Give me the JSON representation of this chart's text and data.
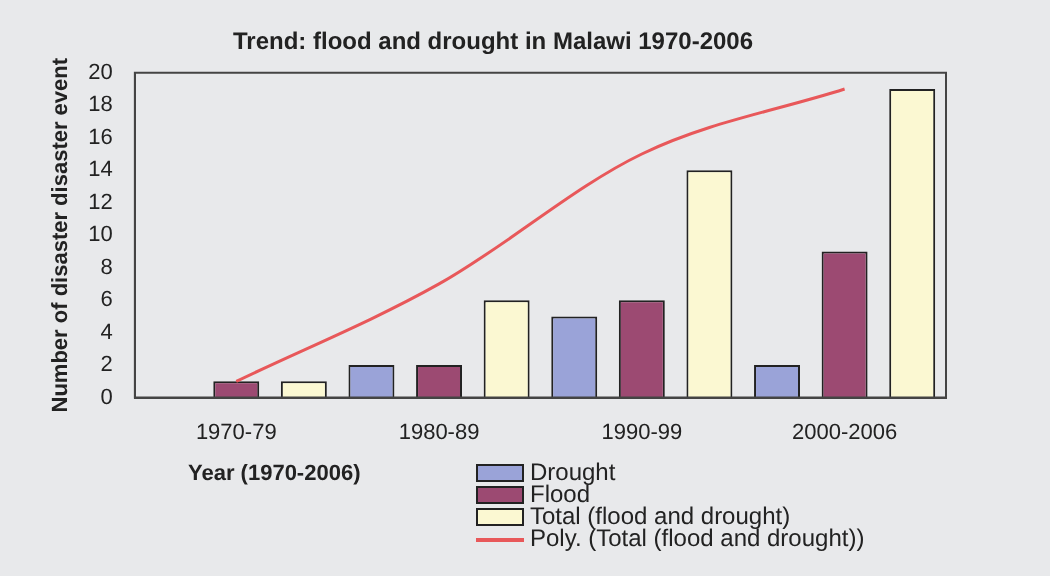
{
  "chart_data": {
    "type": "bar",
    "title": "Trend: flood and drought in Malawi 1970-2006",
    "xlabel": "Year (1970-2006)",
    "ylabel": "Number of disaster disaster event",
    "categories": [
      "1970-79",
      "1980-89",
      "1990-99",
      "2000-2006"
    ],
    "series": [
      {
        "name": "Drought",
        "color": "#9aa3d8",
        "values": [
          0,
          2,
          5,
          2
        ]
      },
      {
        "name": "Flood",
        "color": "#9c4a72",
        "values": [
          1,
          2,
          6,
          9
        ]
      },
      {
        "name": "Total (flood and drought)",
        "color": "#fbf8d2",
        "values": [
          1,
          6,
          14,
          19
        ]
      },
      {
        "name": "Poly. (Total (flood and drought))",
        "type": "line",
        "color": "#e8585a",
        "values": [
          1,
          7,
          15,
          19
        ]
      }
    ],
    "ylim": [
      0,
      20
    ],
    "yticks": [
      0,
      2,
      4,
      6,
      8,
      10,
      12,
      14,
      16,
      18,
      20
    ],
    "grid": false,
    "legend": "bottom",
    "marker": "none"
  }
}
